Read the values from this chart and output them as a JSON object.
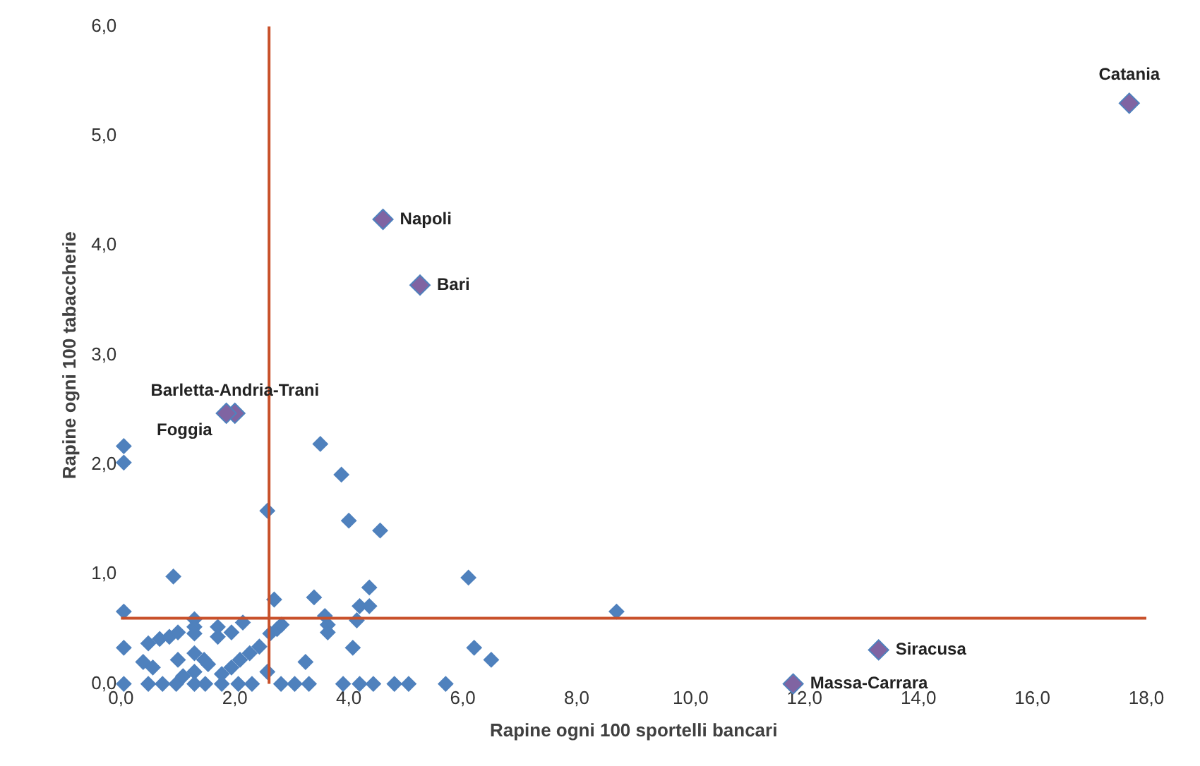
{
  "chart_data": {
    "type": "scatter",
    "xlabel": "Rapine ogni 100 sportelli bancari",
    "ylabel": "Rapine ogni 100 tabaccherie",
    "xlim": [
      0,
      18
    ],
    "ylim": [
      0,
      6
    ],
    "xticks": [
      {
        "value": 0,
        "label": "0,0"
      },
      {
        "value": 2,
        "label": "2,0"
      },
      {
        "value": 4,
        "label": "4,0"
      },
      {
        "value": 6,
        "label": "6,0"
      },
      {
        "value": 8,
        "label": "8,0"
      },
      {
        "value": 10,
        "label": "10,0"
      },
      {
        "value": 12,
        "label": "12,0"
      },
      {
        "value": 14,
        "label": "14,0"
      },
      {
        "value": 16,
        "label": "16,0"
      },
      {
        "value": 18,
        "label": "18,0"
      }
    ],
    "yticks": [
      {
        "value": 0,
        "label": "0,0"
      },
      {
        "value": 1,
        "label": "1,0"
      },
      {
        "value": 2,
        "label": "2,0"
      },
      {
        "value": 3,
        "label": "3,0"
      },
      {
        "value": 4,
        "label": "4,0"
      },
      {
        "value": 5,
        "label": "5,0"
      },
      {
        "value": 6,
        "label": "6,0"
      }
    ],
    "grid": false,
    "legend": false,
    "marker": "diamond",
    "series": [
      {
        "color": "#4f81bd",
        "x": [
          0.05,
          0.05,
          3.5,
          3.87,
          2.57,
          4.0,
          4.55,
          0.92,
          0.05,
          2.69,
          3.39,
          4.36,
          4.19,
          4.36,
          3.58,
          3.63,
          3.63,
          4.14,
          4.07,
          3.24,
          6.1,
          8.7,
          6.2,
          6.5,
          0.05,
          0.48,
          0.73,
          0.97,
          1.29,
          1.48,
          1.77,
          2.06,
          2.3,
          2.81,
          3.05,
          3.3,
          3.9,
          4.19,
          4.43,
          4.8,
          5.05,
          5.7,
          0.05,
          0.48,
          0.68,
          0.85,
          1.0,
          1.29,
          1.29,
          1.29,
          1.7,
          1.7,
          1.94,
          2.14,
          0.39,
          0.56,
          1.0,
          1.29,
          1.46,
          1.53,
          1.29,
          1.77,
          1.94,
          2.09,
          2.26,
          2.43,
          2.57,
          2.62,
          2.74,
          2.82,
          1.09
        ],
        "values": [
          2.17,
          2.02,
          2.19,
          1.91,
          1.58,
          1.49,
          1.4,
          0.98,
          0.66,
          0.77,
          0.79,
          0.88,
          0.71,
          0.71,
          0.62,
          0.54,
          0.47,
          0.58,
          0.33,
          0.2,
          0.97,
          0.66,
          0.33,
          0.22,
          0,
          0,
          0,
          0,
          0,
          0,
          0,
          0,
          0,
          0,
          0,
          0,
          0,
          0,
          0,
          0,
          0,
          0,
          0.33,
          0.37,
          0.41,
          0.43,
          0.47,
          0.59,
          0.52,
          0.46,
          0.52,
          0.43,
          0.47,
          0.56,
          0.2,
          0.15,
          0.22,
          0.28,
          0.22,
          0.18,
          0.11,
          0.09,
          0.15,
          0.22,
          0.28,
          0.34,
          0.11,
          0.46,
          0.5,
          0.54,
          0.07
        ]
      },
      {
        "color": "#8064a2",
        "x": [
          17.7,
          4.6,
          5.25,
          2.0,
          1.85,
          13.3,
          11.8
        ],
        "values": [
          5.3,
          4.24,
          3.64,
          2.47,
          2.47,
          0.31,
          0
        ]
      }
    ],
    "ref_lines": [
      {
        "axis": "x",
        "value": 2.6,
        "color": "#c8502a"
      },
      {
        "axis": "y",
        "value": 0.6,
        "color": "#c8502a"
      }
    ],
    "annotations": [
      {
        "text": "Catania",
        "x": 17.7,
        "y": 5.3
      },
      {
        "text": "Napoli",
        "x": 4.6,
        "y": 4.24
      },
      {
        "text": "Bari",
        "x": 5.25,
        "y": 3.64
      },
      {
        "text": "Barletta-Andria-Trani",
        "x": 2.0,
        "y": 2.47
      },
      {
        "text": "Foggia",
        "x": 1.85,
        "y": 2.47
      },
      {
        "text": "Siracusa",
        "x": 13.3,
        "y": 0.31
      },
      {
        "text": "Massa-Carrara",
        "x": 11.8,
        "y": 0
      }
    ]
  }
}
